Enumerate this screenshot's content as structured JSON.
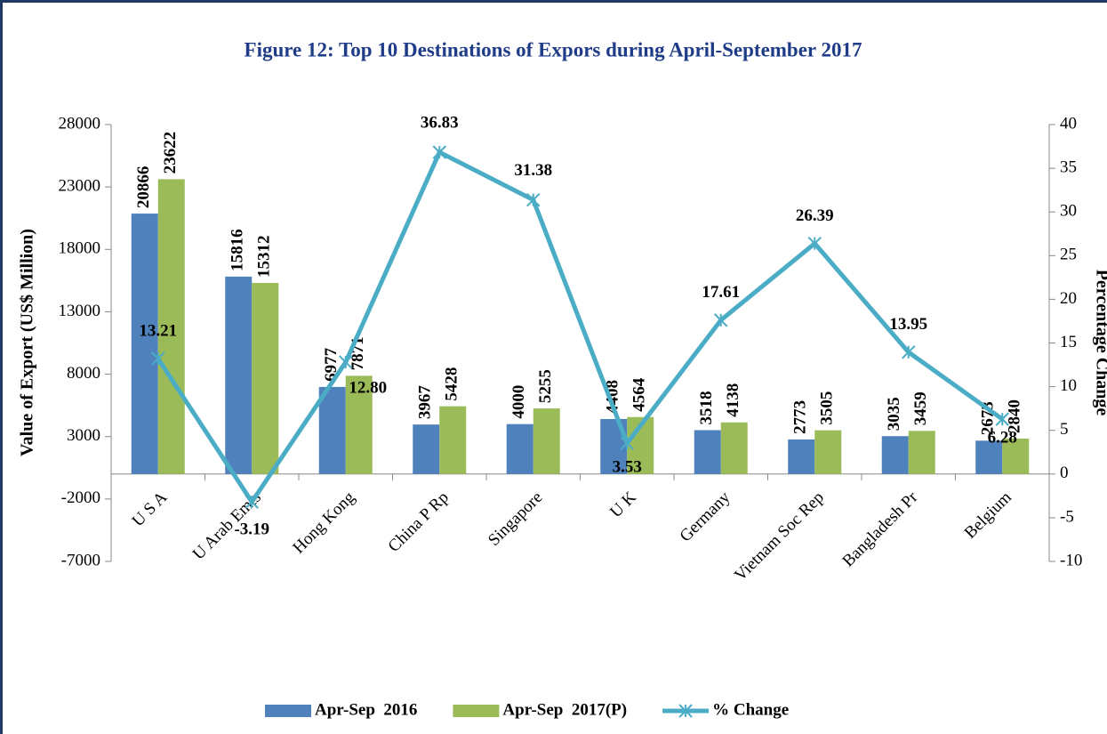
{
  "chart_data": {
    "type": "bar-line",
    "title": "Figure 12: Top 10 Destinations of Expors during April-September 2017",
    "y_label": "Value of Export (US$ Million)",
    "y2_label": "Percentage Change",
    "categories": [
      "U S A",
      "U Arab Emts",
      "Hong Kong",
      "China P Rp",
      "Singapore",
      "U K",
      "Germany",
      "Vietnam Soc Rep",
      "Bangladesh Pr",
      "Belgium"
    ],
    "series": [
      {
        "name": "Apr-Sep  2016",
        "type": "bar",
        "color": "#4f81bd",
        "values": [
          20866,
          15816,
          6977,
          3967,
          4000,
          4408,
          3518,
          2773,
          3035,
          2673
        ]
      },
      {
        "name": "Apr-Sep  2017(P)",
        "type": "bar",
        "color": "#9bbb59",
        "values": [
          23622,
          15312,
          7871,
          5428,
          5255,
          4564,
          4138,
          3505,
          3459,
          2840
        ]
      },
      {
        "name": "% Change",
        "type": "line",
        "axis": "y2",
        "color": "#4bacc6",
        "values": [
          13.21,
          -3.19,
          12.8,
          36.83,
          31.38,
          3.53,
          17.61,
          26.39,
          13.95,
          6.28
        ],
        "value_labels": [
          "13.21",
          "-3.19",
          "12.80",
          "36.83",
          "31.38",
          "3.53",
          "17.61",
          "26.39",
          "13.95",
          "6.28"
        ]
      }
    ],
    "ylim": [
      -7000,
      28000
    ],
    "yticks": [
      -7000,
      -2000,
      3000,
      8000,
      13000,
      18000,
      23000,
      28000
    ],
    "y2lim": [
      -10,
      40
    ],
    "y2ticks": [
      -10,
      -5,
      0,
      5,
      10,
      15,
      20,
      25,
      30,
      35,
      40
    ],
    "legend": "bottom"
  }
}
